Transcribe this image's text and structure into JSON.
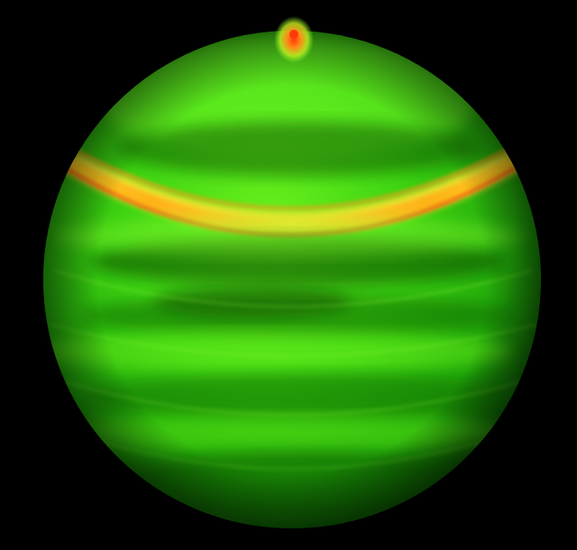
{
  "scene": {
    "background": "#000000",
    "subject": "glowing-banded-sphere",
    "palette": {
      "base_green": "#2fcf10",
      "bright_green": "#7dff2a",
      "dark_green": "#0a5a05",
      "yellow": "#f0e020",
      "orange": "#ff7a10",
      "red": "#ff3a0a"
    }
  }
}
